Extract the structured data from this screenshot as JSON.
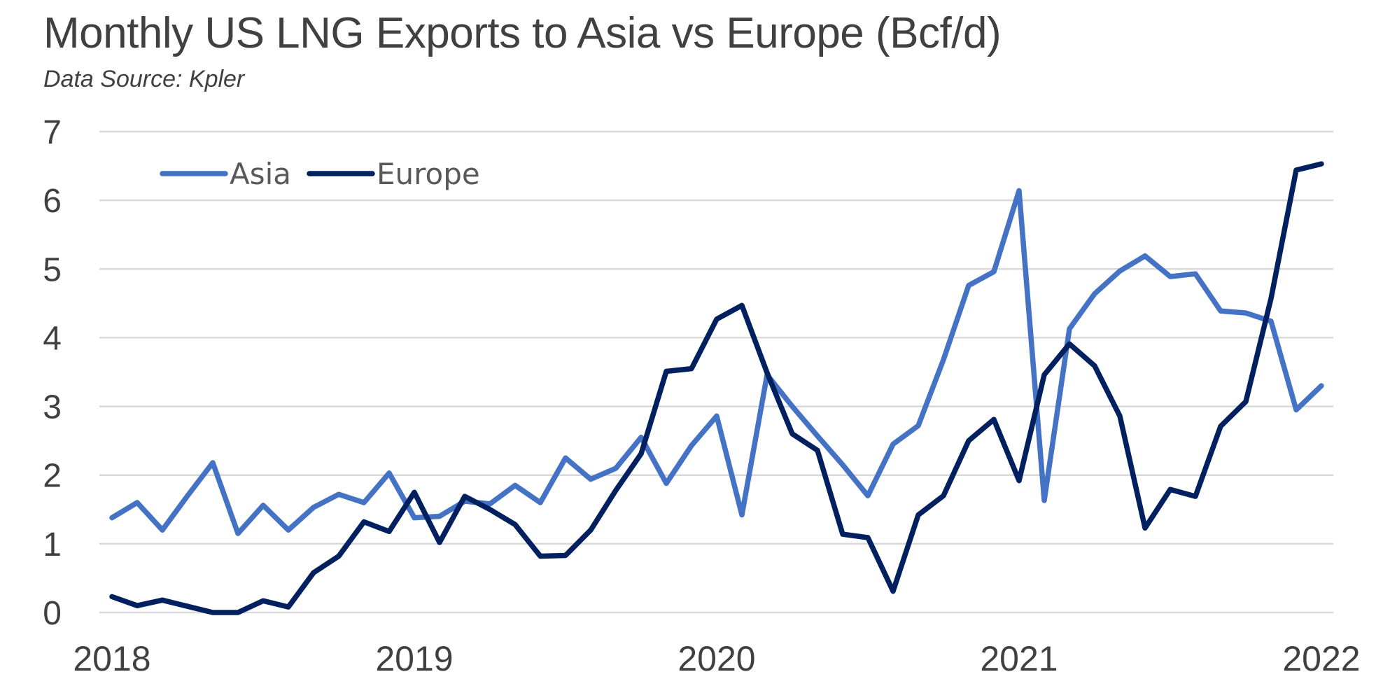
{
  "chart_data": {
    "type": "line",
    "title": "Monthly US LNG Exports to Asia vs Europe (Bcf/d)",
    "subtitle": "Data Source: Kpler",
    "xlabel": "",
    "ylabel": "",
    "x_start": "2018-01",
    "x_end": "2022-01",
    "x_frequency": "monthly",
    "x_tick_labels": [
      "2018",
      "2019",
      "2020",
      "2021",
      "2022"
    ],
    "ylim": [
      0,
      7
    ],
    "y_ticks": [
      0,
      1,
      2,
      3,
      4,
      5,
      6,
      7
    ],
    "grid": "horizontal",
    "legend_position": "top-left",
    "series": [
      {
        "name": "Asia",
        "color": "#4472C4",
        "values": [
          1.38,
          1.6,
          1.2,
          1.7,
          2.18,
          1.15,
          1.56,
          1.2,
          1.53,
          1.72,
          1.6,
          2.03,
          1.38,
          1.4,
          1.62,
          1.58,
          1.85,
          1.6,
          2.25,
          1.94,
          2.1,
          2.55,
          1.88,
          2.43,
          2.86,
          1.42,
          3.46,
          3.0,
          2.57,
          2.15,
          1.7,
          2.45,
          2.72,
          3.68,
          4.76,
          4.96,
          6.14,
          1.63,
          4.13,
          4.64,
          4.97,
          5.19,
          4.89,
          4.93,
          4.39,
          4.36,
          4.24,
          2.95,
          3.3
        ]
      },
      {
        "name": "Europe",
        "color": "#002060",
        "values": [
          0.23,
          0.1,
          0.18,
          0.09,
          0.0,
          0.0,
          0.17,
          0.08,
          0.58,
          0.82,
          1.32,
          1.18,
          1.75,
          1.02,
          1.69,
          1.5,
          1.28,
          0.82,
          0.83,
          1.2,
          1.78,
          2.31,
          3.51,
          3.55,
          4.27,
          4.47,
          3.49,
          2.6,
          2.36,
          1.14,
          1.09,
          0.31,
          1.42,
          1.7,
          2.5,
          2.81,
          1.92,
          3.46,
          3.91,
          3.59,
          2.86,
          1.23,
          1.79,
          1.69,
          2.71,
          3.07,
          4.57,
          6.44,
          6.53
        ]
      }
    ]
  }
}
